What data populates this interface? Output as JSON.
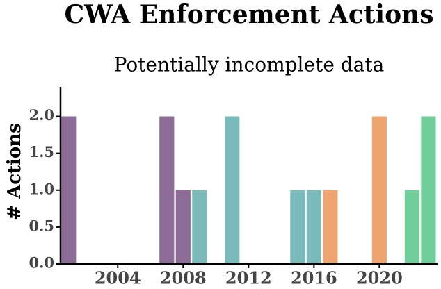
{
  "chart_data": {
    "type": "bar",
    "title": "CWA Enforcement Actions",
    "subtitle": "Potentially incomplete data",
    "y_label": "# Actions",
    "x": [
      2001,
      2007,
      2008,
      2009,
      2011,
      2015,
      2016,
      2017,
      2020,
      2022,
      2023
    ],
    "values": [
      2,
      2,
      1,
      1,
      2,
      1,
      1,
      1,
      2,
      1,
      2
    ],
    "colors": [
      "#8c6b96",
      "#8c6b96",
      "#8c6b96",
      "#7ababa",
      "#7ababa",
      "#7ababa",
      "#7ababa",
      "#eda46f",
      "#eda46f",
      "#6fce9a",
      "#6fce9a"
    ],
    "xlim": [
      2000.5,
      2023.6
    ],
    "xticks": [
      2004,
      2008,
      2012,
      2016,
      2020
    ],
    "ylim": [
      0,
      2.4
    ],
    "yticks": [
      {
        "value": 0,
        "label": "0.0"
      },
      0.5,
      {
        "value": 1,
        "label": "1.0"
      },
      1.5,
      {
        "value": 2,
        "label": "2.0"
      }
    ]
  }
}
